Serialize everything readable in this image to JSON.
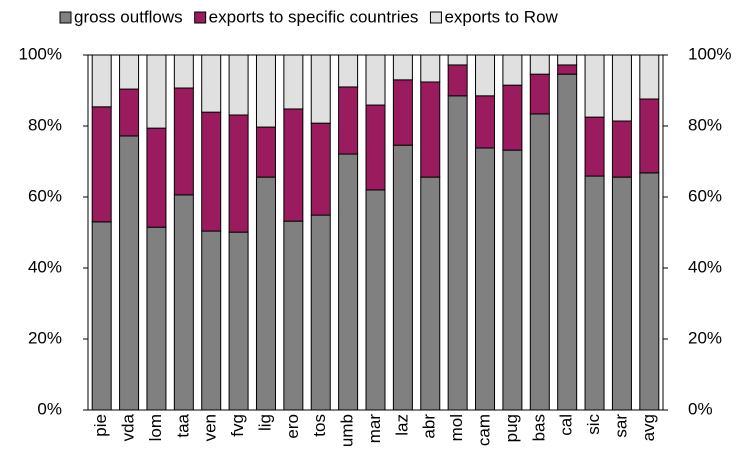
{
  "chart_data": {
    "type": "stacked_bar",
    "categories": [
      "pie",
      "vda",
      "lom",
      "taa",
      "ven",
      "fvg",
      "lig",
      "ero",
      "tos",
      "umb",
      "mar",
      "laz",
      "abr",
      "mol",
      "cam",
      "pug",
      "bas",
      "cal",
      "sic",
      "sar",
      "avg"
    ],
    "series": [
      {
        "name": "gross outflows",
        "color": "#808080",
        "values": [
          53,
          77.2,
          51.5,
          60.6,
          50.4,
          50.1,
          65.6,
          53.2,
          54.9,
          72.1,
          62,
          74.6,
          65.6,
          88.5,
          73.8,
          73.2,
          83.4,
          94.6,
          65.9,
          65.6,
          66.8
        ]
      },
      {
        "name": "exports to specific countries",
        "color": "#9b1c5e",
        "values": [
          32.4,
          13.2,
          27.9,
          30.1,
          33.5,
          33,
          14.1,
          31.6,
          25.9,
          18.9,
          23.9,
          18.4,
          26.8,
          8.7,
          14.7,
          18.3,
          11.2,
          2.6,
          16.6,
          15.8,
          20.8
        ]
      },
      {
        "name": "exports to Row",
        "color": "#e0e0e0",
        "values": [
          14.6,
          9.6,
          20.6,
          9.3,
          16.1,
          16.9,
          20.3,
          15.2,
          19.2,
          9,
          14.1,
          7,
          7.6,
          2.8,
          11.5,
          8.5,
          5.4,
          2.8,
          17.5,
          18.6,
          12.4
        ]
      }
    ],
    "ylim": [
      0,
      100
    ],
    "yticks": [
      {
        "value": 0,
        "label": "0%"
      },
      {
        "value": 20,
        "label": "20%"
      },
      {
        "value": 40,
        "label": "40%"
      },
      {
        "value": 60,
        "label": "60%"
      },
      {
        "value": 80,
        "label": "80%"
      },
      {
        "value": 100,
        "label": "100%"
      }
    ],
    "y2lim": [
      0,
      100
    ],
    "y2ticks": [
      {
        "value": 0,
        "label": "0%"
      },
      {
        "value": 20,
        "label": "20%"
      },
      {
        "value": 40,
        "label": "40%"
      },
      {
        "value": 60,
        "label": "60%"
      },
      {
        "value": 80,
        "label": "80%"
      },
      {
        "value": 100,
        "label": "100%"
      }
    ],
    "legend": "top"
  }
}
